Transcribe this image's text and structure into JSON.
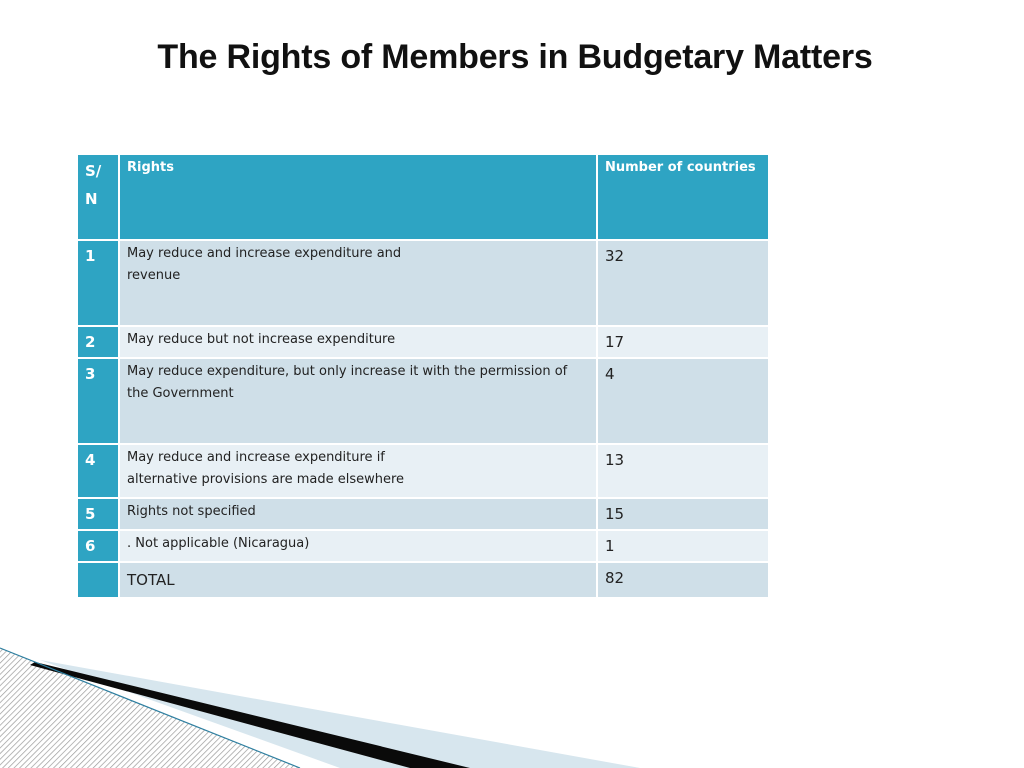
{
  "slide": {
    "title": "The Rights of Members in Budgetary Matters"
  },
  "table": {
    "headers": {
      "sn": "S/\nN",
      "rights": "Rights",
      "count": "Number of countries"
    },
    "rows": [
      {
        "sn": "1",
        "rights": "May reduce and increase expenditure and\nrevenue",
        "count": "32"
      },
      {
        "sn": "2",
        "rights": "May reduce but not increase expenditure",
        "count": "17"
      },
      {
        "sn": "3",
        "rights": "May reduce expenditure, but only increase it with the permission of the Government",
        "count": "4"
      },
      {
        "sn": "4",
        "rights": "May reduce and increase expenditure if\nalternative provisions are made elsewhere",
        "count": "13"
      },
      {
        "sn": "5",
        "rights": "Rights not specified",
        "count": "15"
      },
      {
        "sn": "6",
        "rights": ". Not applicable (Nicaragua)",
        "count": "1"
      }
    ],
    "total": {
      "label": "TOTAL",
      "count": "82"
    }
  },
  "colors": {
    "header_bg": "#2ea4c3",
    "row_dark": "#cfdfe8",
    "row_light": "#e8f0f5"
  }
}
